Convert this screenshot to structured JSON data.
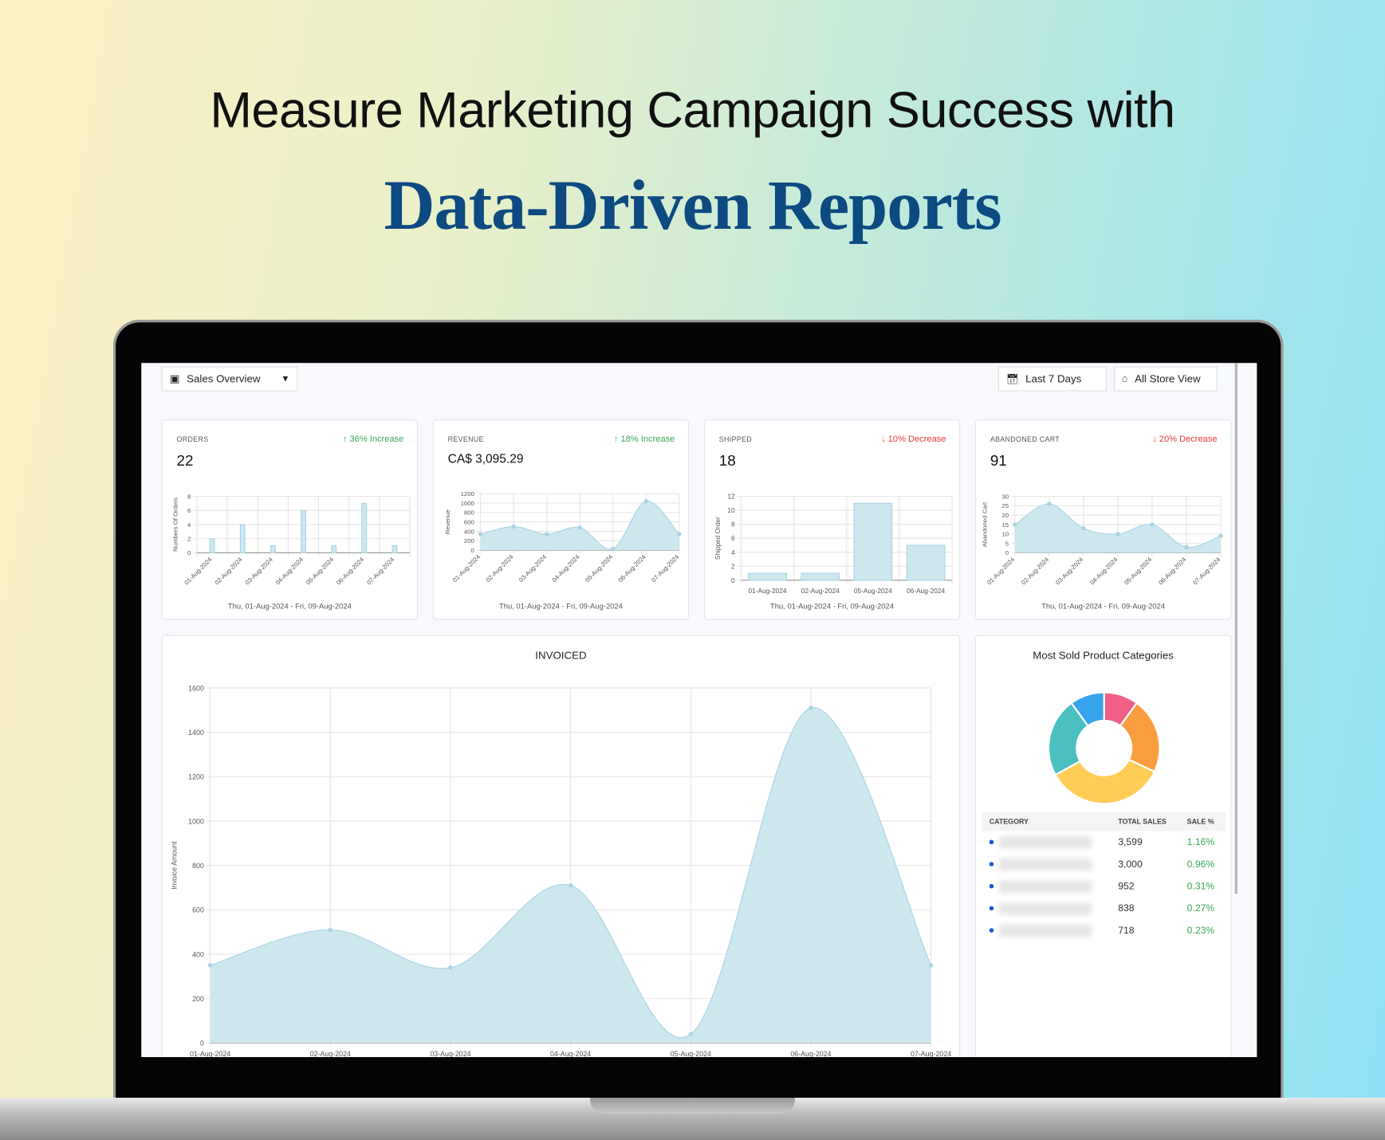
{
  "headline": {
    "line1": "Measure Marketing Campaign Success with",
    "line2": "Data-Driven Reports"
  },
  "toolbar": {
    "view_label": "Sales Overview",
    "view_icon": "grid-icon",
    "date_label": "Last 7 Days",
    "date_icon": "calendar-icon",
    "store_label": "All Store View",
    "store_icon": "store-icon"
  },
  "colors": {
    "area": "#cde7ef",
    "line": "#a9d4e2",
    "increase": "#3aa757",
    "decrease": "#e0393e",
    "title": "#0d4a82"
  },
  "date_range": "Thu, 01-Aug-2024 - Fri, 09-Aug-2024",
  "cards": [
    {
      "label": "ORDERS",
      "value": "22",
      "change": "↑ 36% Increase",
      "trend": "up"
    },
    {
      "label": "REVENUE",
      "value": "CA$ 3,095.29",
      "change": "↑ 18% Increase",
      "trend": "up"
    },
    {
      "label": "SHIPPED",
      "value": "18",
      "change": "↓ 10% Decrease",
      "trend": "down"
    },
    {
      "label": "ABANDONED CART",
      "value": "91",
      "change": "↓ 20% Decrease",
      "trend": "down"
    }
  ],
  "chart_data": [
    {
      "type": "bar",
      "ylabel": "Numbers Of Orders",
      "ylim": [
        0,
        8
      ],
      "yticks": [
        0,
        2,
        4,
        6,
        8
      ],
      "categories": [
        "01-Aug-2024",
        "02-Aug-2024",
        "03-Aug-2024",
        "04-Aug-2024",
        "05-Aug-2024",
        "06-Aug-2024",
        "07-Aug-2024"
      ],
      "values": [
        2,
        4,
        1,
        6,
        1,
        7,
        1
      ],
      "grid": true
    },
    {
      "type": "area",
      "ylabel": "Revenue",
      "ylim": [
        0,
        1200
      ],
      "yticks": [
        0,
        200,
        400,
        600,
        800,
        1000,
        1200
      ],
      "categories": [
        "01-Aug-2024",
        "02-Aug-2024",
        "03-Aug-2024",
        "04-Aug-2024",
        "05-Aug-2024",
        "06-Aug-2024",
        "07-Aug-2024"
      ],
      "values": [
        340,
        500,
        340,
        480,
        30,
        1040,
        340
      ],
      "grid": true
    },
    {
      "type": "bar",
      "ylabel": "Shipped Order",
      "ylim": [
        0,
        12
      ],
      "yticks": [
        0,
        2,
        4,
        6,
        8,
        10,
        12
      ],
      "categories": [
        "01-Aug-2024",
        "02-Aug-2024",
        "05-Aug-2024",
        "06-Aug-2024"
      ],
      "values": [
        1,
        1,
        11,
        5
      ],
      "grid": true
    },
    {
      "type": "area",
      "ylabel": "Abandoned Cart",
      "ylim": [
        0,
        30
      ],
      "yticks": [
        0,
        5,
        10,
        15,
        20,
        25,
        30
      ],
      "categories": [
        "01-Aug-2024",
        "02-Aug-2024",
        "03-Aug-2024",
        "04-Aug-2024",
        "05-Aug-2024",
        "06-Aug-2024",
        "07-Aug-2024"
      ],
      "values": [
        15,
        26,
        13,
        10,
        15,
        3,
        9
      ],
      "grid": true
    },
    {
      "type": "area",
      "title": "INVOICED",
      "ylabel": "Invoice Amount",
      "ylim": [
        0,
        1600
      ],
      "yticks": [
        0,
        200,
        400,
        600,
        800,
        1000,
        1200,
        1400,
        1600
      ],
      "categories": [
        "01-Aug-2024",
        "02-Aug-2024",
        "03-Aug-2024",
        "04-Aug-2024",
        "05-Aug-2024",
        "06-Aug-2024",
        "07-Aug-2024"
      ],
      "values": [
        350,
        510,
        340,
        710,
        40,
        1510,
        350
      ],
      "grid": true
    },
    {
      "type": "pie",
      "title": "Most Sold Product Categories",
      "donut": true,
      "values": [
        10,
        22,
        35,
        23,
        10
      ],
      "colors": [
        "#ef5f86",
        "#f99d3e",
        "#ffcd56",
        "#4bc0c0",
        "#36a2eb"
      ]
    }
  ],
  "categories_table": {
    "headers": [
      "CATEGORY",
      "TOTAL SALES",
      "SALE %"
    ],
    "rows": [
      {
        "total": "3,599",
        "pct": "1.16%"
      },
      {
        "total": "3,000",
        "pct": "0.96%"
      },
      {
        "total": "952",
        "pct": "0.31%"
      },
      {
        "total": "838",
        "pct": "0.27%"
      },
      {
        "total": "718",
        "pct": "0.23%"
      }
    ]
  }
}
